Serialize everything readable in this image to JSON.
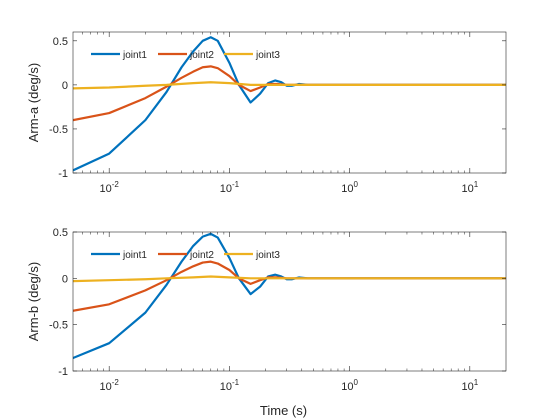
{
  "chart_data": [
    {
      "type": "line",
      "xscale": "log",
      "xlim": [
        0.005,
        20
      ],
      "ylim": [
        -1,
        0.6
      ],
      "ylabel": "Arm-a (deg/s)",
      "xlabel": "",
      "grid": false,
      "legend": {
        "placement": "top-left",
        "entries": [
          "joint1",
          "joint2",
          "joint3"
        ]
      },
      "yticks": [
        "-1",
        "-0.5",
        "0",
        "0.5"
      ],
      "yticks_values": [
        -1,
        -0.5,
        0,
        0.5
      ],
      "xticks_values": [
        0.01,
        0.1,
        1,
        10
      ],
      "xticks": [
        {
          "base": "10",
          "exp": "-2"
        },
        {
          "base": "10",
          "exp": "-1"
        },
        {
          "base": "10",
          "exp": "0"
        },
        {
          "base": "10",
          "exp": "1"
        }
      ],
      "series": [
        {
          "name": "joint1",
          "color": "#0072BD",
          "x": [
            0.005,
            0.01,
            0.02,
            0.03,
            0.04,
            0.05,
            0.06,
            0.07,
            0.08,
            0.1,
            0.12,
            0.15,
            0.18,
            0.21,
            0.24,
            0.27,
            0.3,
            0.33,
            0.38,
            0.45,
            0.55,
            1,
            5,
            20
          ],
          "y": [
            -0.97,
            -0.78,
            -0.4,
            -0.08,
            0.2,
            0.38,
            0.5,
            0.54,
            0.5,
            0.25,
            0.0,
            -0.2,
            -0.1,
            0.02,
            0.05,
            0.03,
            -0.01,
            -0.01,
            0.01,
            0.0,
            0.0,
            0.0,
            0.0,
            0.0
          ]
        },
        {
          "name": "joint2",
          "color": "#D95319",
          "x": [
            0.005,
            0.01,
            0.02,
            0.03,
            0.04,
            0.05,
            0.06,
            0.07,
            0.08,
            0.1,
            0.12,
            0.15,
            0.18,
            0.21,
            0.25,
            0.3,
            0.4,
            1,
            5,
            20
          ],
          "y": [
            -0.4,
            -0.32,
            -0.15,
            -0.02,
            0.08,
            0.15,
            0.2,
            0.21,
            0.19,
            0.1,
            0.0,
            -0.07,
            -0.03,
            0.01,
            0.01,
            0.0,
            0.0,
            0.0,
            0.0,
            0.0
          ]
        },
        {
          "name": "joint3",
          "color": "#EDB120",
          "x": [
            0.005,
            0.01,
            0.02,
            0.03,
            0.05,
            0.07,
            0.1,
            0.15,
            0.2,
            1,
            20
          ],
          "y": [
            -0.04,
            -0.03,
            -0.01,
            0.0,
            0.02,
            0.03,
            0.02,
            0.0,
            0.0,
            0.0,
            0.0
          ]
        }
      ]
    },
    {
      "type": "line",
      "xscale": "log",
      "xlim": [
        0.005,
        20
      ],
      "ylim": [
        -1,
        0.5
      ],
      "ylabel": "Arm-b (deg/s)",
      "xlabel": "Time (s)",
      "grid": false,
      "legend": {
        "placement": "top-left",
        "entries": [
          "joint1",
          "joint2",
          "joint3"
        ]
      },
      "yticks": [
        "-1",
        "-0.5",
        "0",
        "0.5"
      ],
      "yticks_values": [
        -1,
        -0.5,
        0,
        0.5
      ],
      "xticks_values": [
        0.01,
        0.1,
        1,
        10
      ],
      "xticks": [
        {
          "base": "10",
          "exp": "-2"
        },
        {
          "base": "10",
          "exp": "-1"
        },
        {
          "base": "10",
          "exp": "0"
        },
        {
          "base": "10",
          "exp": "1"
        }
      ],
      "series": [
        {
          "name": "joint1",
          "color": "#0072BD",
          "x": [
            0.005,
            0.01,
            0.02,
            0.03,
            0.04,
            0.05,
            0.06,
            0.07,
            0.08,
            0.1,
            0.12,
            0.15,
            0.18,
            0.21,
            0.24,
            0.27,
            0.3,
            0.33,
            0.38,
            0.45,
            0.55,
            1,
            5,
            20
          ],
          "y": [
            -0.86,
            -0.7,
            -0.37,
            -0.07,
            0.18,
            0.35,
            0.45,
            0.48,
            0.44,
            0.22,
            0.0,
            -0.17,
            -0.09,
            0.02,
            0.04,
            0.02,
            -0.01,
            -0.01,
            0.01,
            0.0,
            0.0,
            0.0,
            0.0,
            0.0
          ]
        },
        {
          "name": "joint2",
          "color": "#D95319",
          "x": [
            0.005,
            0.01,
            0.02,
            0.03,
            0.04,
            0.05,
            0.06,
            0.07,
            0.08,
            0.1,
            0.12,
            0.15,
            0.18,
            0.21,
            0.25,
            0.3,
            0.4,
            1,
            5,
            20
          ],
          "y": [
            -0.35,
            -0.28,
            -0.13,
            -0.02,
            0.07,
            0.13,
            0.17,
            0.18,
            0.16,
            0.09,
            0.0,
            -0.06,
            -0.02,
            0.01,
            0.01,
            0.0,
            0.0,
            0.0,
            0.0,
            0.0
          ]
        },
        {
          "name": "joint3",
          "color": "#EDB120",
          "x": [
            0.005,
            0.01,
            0.02,
            0.03,
            0.05,
            0.07,
            0.1,
            0.15,
            0.2,
            1,
            20
          ],
          "y": [
            -0.03,
            -0.02,
            -0.01,
            0.0,
            0.01,
            0.02,
            0.01,
            0.0,
            0.0,
            0.0,
            0.0
          ]
        }
      ]
    }
  ]
}
